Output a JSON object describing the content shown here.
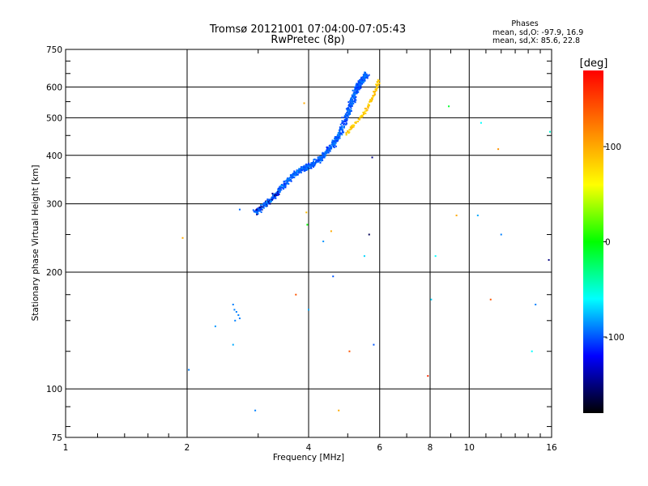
{
  "chart_data": {
    "type": "scatter",
    "title": "Tromsø 20121001 07:04:00-07:05:43",
    "subtitle": "RwPretec (8p)",
    "xlabel": "Frequency [MHz]",
    "ylabel": "Stationary phase Virtual Height [km]",
    "x_scale": "log",
    "y_scale": "log",
    "xlim": [
      1,
      16
    ],
    "ylim": [
      75,
      750
    ],
    "x_ticks": [
      1,
      2,
      4,
      6,
      8,
      10,
      16
    ],
    "y_ticks": [
      75,
      100,
      200,
      300,
      400,
      500,
      600,
      750
    ],
    "grid": true,
    "stats": {
      "heading": "Phases",
      "line_o": "mean, sd,O: -97.9, 16.9",
      "line_x": "mean, sd,X:  85.6, 22.8"
    },
    "colorbar": {
      "label": "[deg]",
      "range": [
        -180,
        180
      ],
      "ticks": [
        100,
        0,
        -100
      ],
      "colors": [
        "#ff0000",
        "#ff7f00",
        "#ffff00",
        "#00ff00",
        "#00ffff",
        "#0000ff",
        "#000000"
      ]
    },
    "series": [
      {
        "name": "O",
        "trace_x": [
          2.95,
          3.05,
          3.2,
          3.35,
          3.5,
          3.65,
          3.8,
          3.95,
          4.1,
          4.25,
          4.4,
          4.55,
          4.7,
          4.85,
          5.0,
          5.1,
          5.2,
          5.3,
          5.4,
          5.5,
          5.55
        ],
        "trace_y": [
          285,
          292,
          305,
          320,
          338,
          355,
          365,
          372,
          380,
          390,
          405,
          420,
          440,
          470,
          510,
          545,
          575,
          600,
          620,
          635,
          645
        ],
        "mean_phase": -97.9
      },
      {
        "name": "X",
        "trace_x": [
          4.95,
          5.1,
          5.3,
          5.5,
          5.65,
          5.8,
          5.9,
          6.0
        ],
        "trace_y": [
          455,
          470,
          490,
          515,
          540,
          570,
          600,
          630
        ],
        "mean_phase": 85.6
      }
    ],
    "low_cluster": {
      "x": [
        2.6,
        2.62,
        2.65,
        2.68,
        2.7,
        2.63
      ],
      "y": [
        165,
        160,
        158,
        155,
        152,
        150
      ]
    },
    "scattered": [
      {
        "x": 1.95,
        "y": 245,
        "phase": 100
      },
      {
        "x": 2.02,
        "y": 112,
        "phase": -90
      },
      {
        "x": 2.35,
        "y": 145,
        "phase": -85
      },
      {
        "x": 2.6,
        "y": 130,
        "phase": -80
      },
      {
        "x": 2.7,
        "y": 290,
        "phase": -95
      },
      {
        "x": 2.95,
        "y": 88,
        "phase": -90
      },
      {
        "x": 3.9,
        "y": 545,
        "phase": 100
      },
      {
        "x": 3.95,
        "y": 285,
        "phase": 90
      },
      {
        "x": 3.97,
        "y": 265,
        "phase": 0
      },
      {
        "x": 3.72,
        "y": 175,
        "phase": 140
      },
      {
        "x": 4.0,
        "y": 160,
        "phase": -80
      },
      {
        "x": 4.35,
        "y": 240,
        "phase": -85
      },
      {
        "x": 4.55,
        "y": 255,
        "phase": 100
      },
      {
        "x": 4.6,
        "y": 195,
        "phase": -100
      },
      {
        "x": 4.75,
        "y": 88,
        "phase": 100
      },
      {
        "x": 5.05,
        "y": 125,
        "phase": 140
      },
      {
        "x": 5.5,
        "y": 220,
        "phase": -70
      },
      {
        "x": 5.65,
        "y": 250,
        "phase": -160
      },
      {
        "x": 5.8,
        "y": 130,
        "phase": -100
      },
      {
        "x": 5.75,
        "y": 395,
        "phase": -150
      },
      {
        "x": 7.9,
        "y": 108,
        "phase": 160
      },
      {
        "x": 8.05,
        "y": 170,
        "phase": -70
      },
      {
        "x": 8.25,
        "y": 220,
        "phase": -60
      },
      {
        "x": 8.9,
        "y": 535,
        "phase": -10
      },
      {
        "x": 9.3,
        "y": 280,
        "phase": 100
      },
      {
        "x": 10.5,
        "y": 280,
        "phase": -80
      },
      {
        "x": 10.7,
        "y": 485,
        "phase": -60
      },
      {
        "x": 11.3,
        "y": 170,
        "phase": 140
      },
      {
        "x": 11.8,
        "y": 415,
        "phase": 110
      },
      {
        "x": 12.0,
        "y": 250,
        "phase": -90
      },
      {
        "x": 14.3,
        "y": 125,
        "phase": -60
      },
      {
        "x": 14.6,
        "y": 165,
        "phase": -90
      },
      {
        "x": 15.85,
        "y": 460,
        "phase": -50
      },
      {
        "x": 15.75,
        "y": 215,
        "phase": -150
      }
    ]
  }
}
